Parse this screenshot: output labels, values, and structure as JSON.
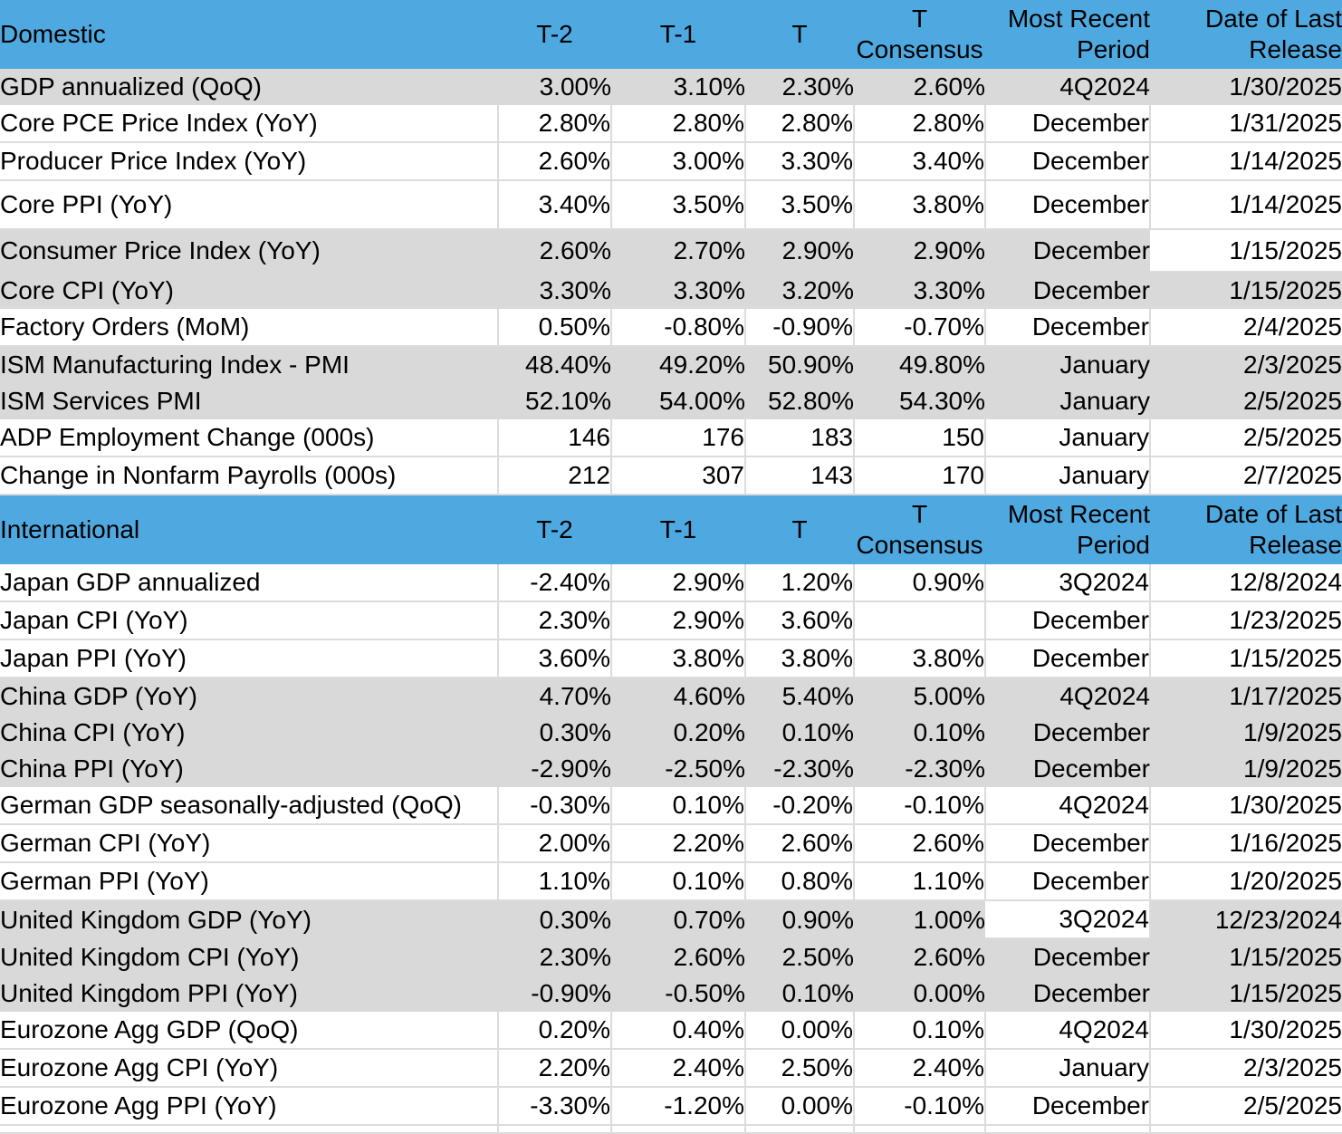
{
  "colors": {
    "section_header_bg": "#4FA9E1",
    "row_gray": "#D9D9D9",
    "row_white": "#FFFFFF",
    "gridline": "#DCDCDC",
    "text": "#000000"
  },
  "chart_data": [
    {
      "type": "table",
      "title": "Domestic",
      "headers": {
        "t2": "T-2",
        "t1": "T-1",
        "t": "T",
        "consensus": [
          "T",
          "Consensus"
        ],
        "period": [
          "Most Recent",
          "Period"
        ],
        "release": [
          "Date of Last",
          "Release"
        ]
      },
      "rows": [
        {
          "label": "GDP annualized (QoQ)",
          "t2": "3.00%",
          "t1": "3.10%",
          "t": "2.30%",
          "consensus": "2.60%",
          "period": "4Q2024",
          "release": "1/30/2025",
          "shade": "gray"
        },
        {
          "label": "Core PCE Price Index (YoY)",
          "t2": "2.80%",
          "t1": "2.80%",
          "t": "2.80%",
          "consensus": "2.80%",
          "period": "December",
          "release": "1/31/2025",
          "shade": "white"
        },
        {
          "label": "Producer Price Index (YoY)",
          "t2": "2.60%",
          "t1": "3.00%",
          "t": "3.30%",
          "consensus": "3.40%",
          "period": "December",
          "release": "1/14/2025",
          "shade": "white"
        },
        {
          "label": "Core PPI (YoY)",
          "t2": "3.40%",
          "t1": "3.50%",
          "t": "3.50%",
          "consensus": "3.80%",
          "period": "December",
          "release": "1/14/2025",
          "shade": "white",
          "size": "tall"
        },
        {
          "label": "Consumer Price Index (YoY)",
          "t2": "2.60%",
          "t1": "2.70%",
          "t": "2.90%",
          "consensus": "2.90%",
          "period": "December",
          "release": "1/15/2025",
          "shade": "gray",
          "white_cells": [
            "release"
          ],
          "size": "mid"
        },
        {
          "label": "Core CPI  (YoY)",
          "t2": "3.30%",
          "t1": "3.30%",
          "t": "3.20%",
          "consensus": "3.30%",
          "period": "December",
          "release": "1/15/2025",
          "shade": "gray"
        },
        {
          "label": "Factory Orders (MoM)",
          "t2": "0.50%",
          "t1": "-0.80%",
          "t": "-0.90%",
          "consensus": "-0.70%",
          "period": "December",
          "release": "2/4/2025",
          "shade": "white"
        },
        {
          "label": "ISM Manufacturing Index - PMI",
          "t2": "48.40%",
          "t1": "49.20%",
          "t": "50.90%",
          "consensus": "49.80%",
          "period": "January",
          "release": "2/3/2025",
          "shade": "gray"
        },
        {
          "label": "ISM Services PMI",
          "t2": "52.10%",
          "t1": "54.00%",
          "t": "52.80%",
          "consensus": "54.30%",
          "period": "January",
          "release": "2/5/2025",
          "shade": "gray"
        },
        {
          "label": "ADP Employment Change (000s)",
          "t2": "146",
          "t1": "176",
          "t": "183",
          "consensus": "150",
          "period": "January",
          "release": "2/5/2025",
          "shade": "white"
        },
        {
          "label": "Change in Nonfarm Payrolls (000s)",
          "t2": "212",
          "t1": "307",
          "t": "143",
          "consensus": "170",
          "period": "January",
          "release": "2/7/2025",
          "shade": "white"
        }
      ]
    },
    {
      "type": "table",
      "title": "International",
      "headers": {
        "t2": "T-2",
        "t1": "T-1",
        "t": "T",
        "consensus": [
          "T",
          "Consensus"
        ],
        "period": [
          "Most Recent",
          "Period"
        ],
        "release": [
          "Date of Last",
          "Release"
        ]
      },
      "rows": [
        {
          "label": "Japan GDP annualized",
          "t2": "-2.40%",
          "t1": "2.90%",
          "t": "1.20%",
          "consensus": "0.90%",
          "period": "3Q2024",
          "release": "12/8/2024",
          "shade": "white"
        },
        {
          "label": "Japan CPI (YoY)",
          "t2": "2.30%",
          "t1": "2.90%",
          "t": "3.60%",
          "consensus": "",
          "period": "December",
          "release": "1/23/2025",
          "shade": "white"
        },
        {
          "label": "Japan PPI (YoY)",
          "t2": "3.60%",
          "t1": "3.80%",
          "t": "3.80%",
          "consensus": "3.80%",
          "period": "December",
          "release": "1/15/2025",
          "shade": "white"
        },
        {
          "label": "China GDP (YoY)",
          "t2": "4.70%",
          "t1": "4.60%",
          "t": "5.40%",
          "consensus": "5.00%",
          "period": "4Q2024",
          "release": "1/17/2025",
          "shade": "gray"
        },
        {
          "label": "China CPI (YoY)",
          "t2": "0.30%",
          "t1": "0.20%",
          "t": "0.10%",
          "consensus": "0.10%",
          "period": "December",
          "release": "1/9/2025",
          "shade": "gray"
        },
        {
          "label": "China PPI (YoY)",
          "t2": "-2.90%",
          "t1": "-2.50%",
          "t": "-2.30%",
          "consensus": "-2.30%",
          "period": "December",
          "release": "1/9/2025",
          "shade": "gray"
        },
        {
          "label": "German GDP seasonally-adjusted (QoQ)",
          "t2": "-0.30%",
          "t1": "0.10%",
          "t": "-0.20%",
          "consensus": "-0.10%",
          "period": "4Q2024",
          "release": "1/30/2025",
          "shade": "white"
        },
        {
          "label": "German CPI (YoY)",
          "t2": "2.00%",
          "t1": "2.20%",
          "t": "2.60%",
          "consensus": "2.60%",
          "period": "December",
          "release": "1/16/2025",
          "shade": "white"
        },
        {
          "label": "German PPI (YoY)",
          "t2": "1.10%",
          "t1": "0.10%",
          "t": "0.80%",
          "consensus": "1.10%",
          "period": "December",
          "release": "1/20/2025",
          "shade": "white"
        },
        {
          "label": "United Kingdom GDP (YoY)",
          "t2": "0.30%",
          "t1": "0.70%",
          "t": "0.90%",
          "consensus": "1.00%",
          "period": "3Q2024",
          "release": "12/23/2024",
          "shade": "gray",
          "white_cells": [
            "period"
          ]
        },
        {
          "label": "United Kingdom CPI (YoY)",
          "t2": "2.30%",
          "t1": "2.60%",
          "t": "2.50%",
          "consensus": "2.60%",
          "period": "December",
          "release": "1/15/2025",
          "shade": "gray"
        },
        {
          "label": "United Kingdom  PPI (YoY)",
          "t2": "-0.90%",
          "t1": "-0.50%",
          "t": "0.10%",
          "consensus": "0.00%",
          "period": "December",
          "release": "1/15/2025",
          "shade": "gray"
        },
        {
          "label": "Eurozone Agg GDP (QoQ)",
          "t2": "0.20%",
          "t1": "0.40%",
          "t": "0.00%",
          "consensus": "0.10%",
          "period": "4Q2024",
          "release": "1/30/2025",
          "shade": "white"
        },
        {
          "label": "Eurozone Agg CPI (YoY)",
          "t2": "2.20%",
          "t1": "2.40%",
          "t": "2.50%",
          "consensus": "2.40%",
          "period": "January",
          "release": "2/3/2025",
          "shade": "white"
        },
        {
          "label": "Eurozone Agg PPI (YoY)",
          "t2": "-3.30%",
          "t1": "-1.20%",
          "t": "0.00%",
          "consensus": "-0.10%",
          "period": "December",
          "release": "2/5/2025",
          "shade": "white"
        }
      ]
    }
  ]
}
